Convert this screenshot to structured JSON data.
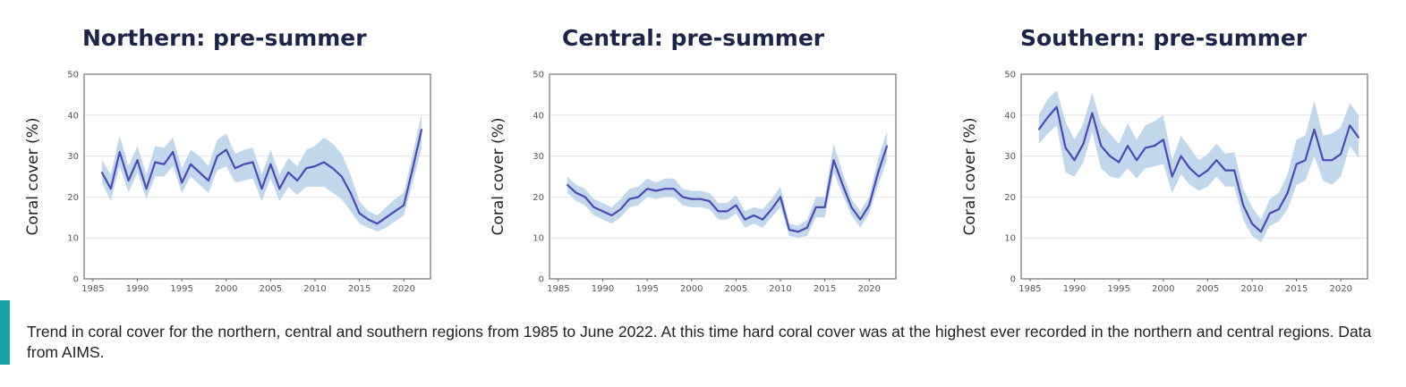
{
  "caption": "Trend in coral cover for the northern, central and southern regions from 1985 to June 2022. At this time hard coral cover was at the highest ever recorded in the northern and central regions. Data from AIMS.",
  "colors": {
    "line": "#4a4ab4",
    "band": "#b9d3ea",
    "title": "#1c2448",
    "accent": "#16a3a8"
  },
  "chart_data": [
    {
      "type": "line",
      "title": "Northern: pre-summer",
      "xlabel": "",
      "ylabel": "Coral cover (%)",
      "xlim": [
        1984,
        2023
      ],
      "ylim": [
        0,
        50
      ],
      "xticks": [
        1985,
        1990,
        1995,
        2000,
        2005,
        2010,
        2015,
        2020
      ],
      "yticks": [
        0,
        10,
        20,
        30,
        40,
        50
      ],
      "grid": true,
      "series": [
        {
          "name": "Coral cover",
          "x": [
            1986,
            1987,
            1988,
            1989,
            1990,
            1991,
            1992,
            1993,
            1994,
            1995,
            1996,
            1997,
            1998,
            1999,
            2000,
            2001,
            2002,
            2003,
            2004,
            2005,
            2006,
            2007,
            2008,
            2009,
            2010,
            2011,
            2012,
            2013,
            2014,
            2015,
            2016,
            2017,
            2018,
            2019,
            2020,
            2021,
            2022
          ],
          "y": [
            26,
            22,
            31,
            24,
            29,
            22,
            28.5,
            28,
            31,
            23.5,
            28,
            26,
            24,
            30,
            31.5,
            27,
            28,
            28.5,
            22,
            28,
            22,
            26,
            24,
            27,
            27.5,
            28.5,
            27,
            25,
            21,
            16,
            14.5,
            13.5,
            15,
            16.5,
            18,
            27,
            36.5
          ],
          "lower": [
            23.5,
            19,
            27.5,
            21,
            26,
            19.5,
            25,
            25,
            27.5,
            21,
            25,
            23,
            21,
            26.5,
            27.5,
            23.5,
            24,
            24.5,
            19,
            24.5,
            19,
            22.5,
            20.5,
            22.5,
            22.5,
            22.5,
            21,
            19.5,
            16.5,
            13.5,
            12.5,
            11.5,
            12.5,
            14,
            15.5,
            23.5,
            32
          ],
          "upper": [
            29,
            25.5,
            35,
            27.5,
            32.5,
            25.5,
            32.5,
            32,
            34.5,
            27,
            31.5,
            30,
            27.5,
            34,
            35.5,
            30.5,
            31.5,
            32,
            25.5,
            31.5,
            25.5,
            29.5,
            27.5,
            31.5,
            32.5,
            34.5,
            33,
            30.5,
            25.5,
            19,
            16.5,
            15.5,
            17.5,
            19.5,
            21,
            30.5,
            40.5
          ]
        }
      ]
    },
    {
      "type": "line",
      "title": "Central: pre-summer",
      "xlabel": "",
      "ylabel": "Coral cover (%)",
      "xlim": [
        1984,
        2023
      ],
      "ylim": [
        0,
        50
      ],
      "xticks": [
        1985,
        1990,
        1995,
        2000,
        2005,
        2010,
        2015,
        2020
      ],
      "yticks": [
        0,
        10,
        20,
        30,
        40,
        50
      ],
      "grid": true,
      "series": [
        {
          "name": "Coral cover",
          "x": [
            1986,
            1987,
            1988,
            1989,
            1990,
            1991,
            1992,
            1993,
            1994,
            1995,
            1996,
            1997,
            1998,
            1999,
            2000,
            2001,
            2002,
            2003,
            2004,
            2005,
            2006,
            2007,
            2008,
            2009,
            2010,
            2011,
            2012,
            2013,
            2014,
            2015,
            2016,
            2017,
            2018,
            2019,
            2020,
            2021,
            2022
          ],
          "y": [
            23,
            21,
            20,
            17.5,
            16.5,
            15.5,
            17,
            19.5,
            20,
            22,
            21.5,
            22,
            22,
            20,
            19.5,
            19.5,
            19,
            16.5,
            16.5,
            18,
            14.5,
            15.5,
            14.5,
            17,
            20,
            12,
            11.5,
            12.5,
            17.5,
            17.5,
            29,
            23,
            17.5,
            14.5,
            18,
            26,
            32.5
          ],
          "lower": [
            21,
            19,
            18,
            15.5,
            14.5,
            13.5,
            15,
            17.5,
            18,
            20,
            19.5,
            20,
            20,
            18,
            17.5,
            17.5,
            17,
            14.5,
            14.5,
            16,
            12.5,
            13.5,
            12.5,
            15,
            17.5,
            10.5,
            10,
            10.5,
            15,
            15,
            26,
            20.5,
            15.5,
            12.5,
            16,
            23,
            29
          ],
          "upper": [
            25,
            23,
            22,
            19.5,
            18.5,
            17.5,
            19.5,
            22,
            22.5,
            24.5,
            23.5,
            24.5,
            24.5,
            22,
            21.5,
            21.5,
            21,
            18.5,
            18.5,
            20.5,
            16.5,
            17.5,
            17,
            19.5,
            22.5,
            13.5,
            13,
            14.5,
            20,
            20,
            33,
            26,
            19.5,
            16.5,
            20,
            29.5,
            36
          ]
        }
      ]
    },
    {
      "type": "line",
      "title": "Southern: pre-summer",
      "xlabel": "",
      "ylabel": "Coral cover (%)",
      "xlim": [
        1984,
        2023
      ],
      "ylim": [
        0,
        50
      ],
      "xticks": [
        1985,
        1990,
        1995,
        2000,
        2005,
        2010,
        2015,
        2020
      ],
      "yticks": [
        0,
        10,
        20,
        30,
        40,
        50
      ],
      "grid": true,
      "series": [
        {
          "name": "Coral cover",
          "x": [
            1986,
            1987,
            1988,
            1989,
            1990,
            1991,
            1992,
            1993,
            1994,
            1995,
            1996,
            1997,
            1998,
            1999,
            2000,
            2001,
            2002,
            2003,
            2004,
            2005,
            2006,
            2007,
            2008,
            2009,
            2010,
            2011,
            2012,
            2013,
            2014,
            2015,
            2016,
            2017,
            2018,
            2019,
            2020,
            2021,
            2022
          ],
          "y": [
            36.5,
            39.5,
            42,
            32,
            29,
            33,
            40.5,
            32.5,
            30,
            28.5,
            32.5,
            29,
            32,
            32.5,
            34,
            25,
            30,
            27,
            25,
            26.5,
            29,
            26.5,
            26.5,
            18,
            13.5,
            11.5,
            16,
            17,
            21,
            28,
            29,
            36.5,
            29,
            29,
            30.5,
            37.5,
            34.5
          ],
          "lower": [
            33,
            35.5,
            37.5,
            26,
            25,
            28.5,
            36,
            27,
            25,
            24.5,
            27,
            24.5,
            27,
            27.5,
            28,
            21,
            25.5,
            23,
            21.5,
            22.5,
            25,
            22.5,
            22.5,
            14.5,
            10.5,
            9,
            13,
            14,
            17,
            23,
            24,
            30,
            24,
            23,
            25,
            32.5,
            29.5
          ],
          "upper": [
            40,
            44,
            46,
            38.5,
            34,
            38,
            45.5,
            38,
            35.5,
            33,
            38,
            34,
            37.5,
            38.5,
            40,
            29,
            35,
            32,
            29,
            30.5,
            33,
            30.5,
            31,
            22,
            17.5,
            14.5,
            19.5,
            21,
            25.5,
            34,
            35,
            43.5,
            35,
            35.5,
            37,
            43,
            40
          ]
        }
      ]
    }
  ]
}
